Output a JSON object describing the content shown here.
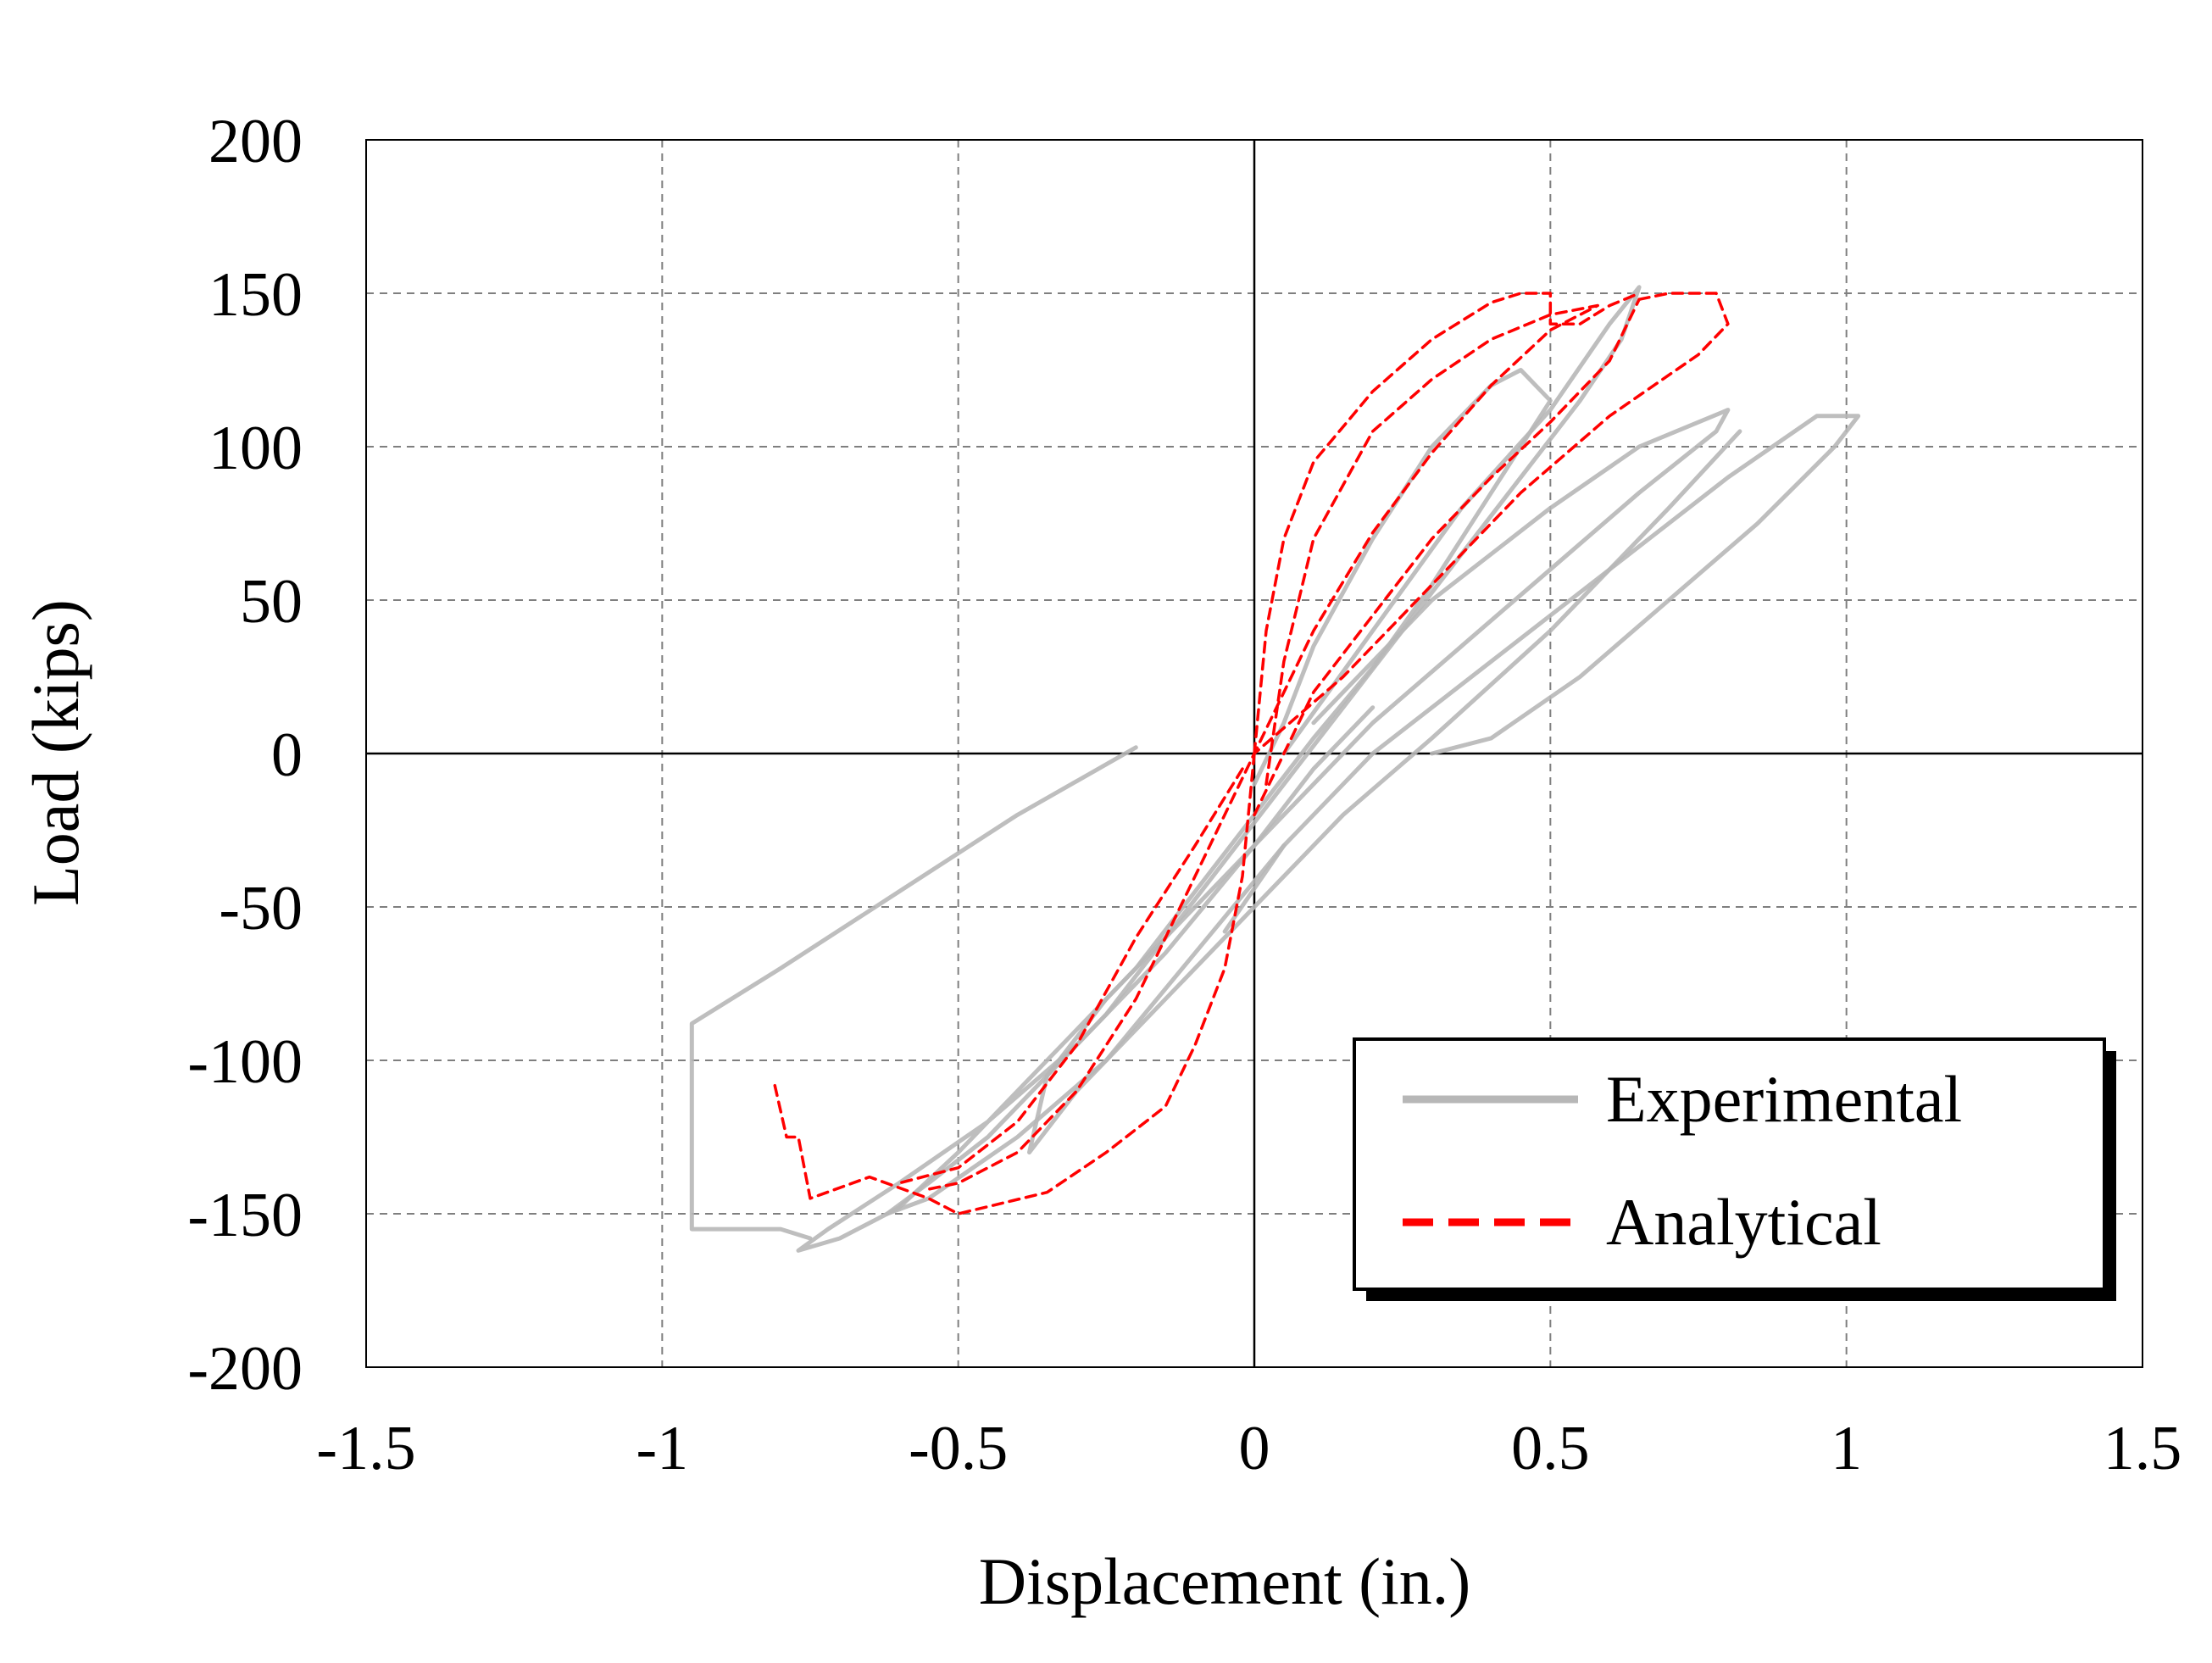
{
  "colors": {
    "experimental": "#b7b7b7",
    "analytical": "#ff0000",
    "grid": "#7f7f7f",
    "axis": "#000000"
  },
  "chart_data": {
    "type": "line",
    "title": "",
    "xlabel": "Displacement (in.)",
    "ylabel": "Load (kips)",
    "xlim": [
      -1.5,
      1.5
    ],
    "ylim": [
      -200,
      200
    ],
    "xticks": [
      -1.5,
      -1,
      -0.5,
      0,
      0.5,
      1,
      1.5
    ],
    "xtick_labels": [
      "-1.5",
      "-1",
      "-0.5",
      "0",
      "0.5",
      "1",
      "1.5"
    ],
    "yticks": [
      200,
      150,
      100,
      50,
      0,
      -50,
      -100,
      -150,
      -200
    ],
    "ytick_labels": [
      "200",
      "150",
      "100",
      "50",
      "0",
      "-50",
      "-100",
      "-150",
      "-200"
    ],
    "grid": true,
    "legend": {
      "position": "bottom-right",
      "entries": [
        "Experimental",
        "Analytical"
      ]
    },
    "series": [
      {
        "name": "Experimental",
        "style": "solid",
        "color": "#b7b7b7",
        "segments": [
          [
            [
              0,
              -10
            ],
            [
              0.05,
              10
            ],
            [
              0.1,
              35
            ],
            [
              0.2,
              70
            ],
            [
              0.3,
              100
            ],
            [
              0.4,
              120
            ],
            [
              0.45,
              125
            ],
            [
              0.5,
              115
            ],
            [
              0.4,
              85
            ],
            [
              0.3,
              55
            ],
            [
              0.2,
              28
            ],
            [
              0.1,
              5
            ],
            [
              0,
              -20
            ],
            [
              -0.1,
              -45
            ],
            [
              -0.2,
              -70
            ],
            [
              -0.3,
              -90
            ],
            [
              -0.4,
              -110
            ],
            [
              -0.5,
              -130
            ],
            [
              -0.6,
              -148
            ],
            [
              -0.7,
              -158
            ],
            [
              -0.77,
              -162
            ],
            [
              -0.72,
              -155
            ],
            [
              -0.6,
              -140
            ],
            [
              -0.45,
              -120
            ],
            [
              -0.3,
              -95
            ],
            [
              -0.15,
              -65
            ],
            [
              0,
              -30
            ],
            [
              0.1,
              -5
            ],
            [
              0.2,
              15
            ]
          ],
          [
            [
              0.05,
              0
            ],
            [
              0.2,
              40
            ],
            [
              0.35,
              80
            ],
            [
              0.5,
              112
            ],
            [
              0.6,
              140
            ],
            [
              0.65,
              152
            ],
            [
              0.62,
              135
            ],
            [
              0.55,
              115
            ],
            [
              0.45,
              90
            ],
            [
              0.35,
              65
            ],
            [
              0.25,
              40
            ],
            [
              0.15,
              15
            ],
            [
              0.05,
              -10
            ],
            [
              -0.05,
              -35
            ],
            [
              -0.15,
              -60
            ],
            [
              -0.25,
              -85
            ],
            [
              -0.35,
              -105
            ],
            [
              -0.45,
              -125
            ],
            [
              -0.55,
              -140
            ],
            [
              -0.62,
              -150
            ],
            [
              -0.55,
              -145
            ],
            [
              -0.4,
              -125
            ],
            [
              -0.25,
              -100
            ],
            [
              -0.1,
              -65
            ],
            [
              0.05,
              -30
            ]
          ],
          [
            [
              0.1,
              10
            ],
            [
              0.3,
              50
            ],
            [
              0.5,
              80
            ],
            [
              0.65,
              100
            ],
            [
              0.8,
              112
            ],
            [
              0.78,
              105
            ],
            [
              0.65,
              85
            ],
            [
              0.5,
              60
            ],
            [
              0.35,
              35
            ],
            [
              0.2,
              10
            ],
            [
              0.05,
              -20
            ],
            [
              -0.1,
              -50
            ],
            [
              -0.25,
              -80
            ],
            [
              -0.35,
              -105
            ],
            [
              -0.38,
              -130
            ],
            [
              -0.3,
              -110
            ],
            [
              -0.2,
              -90
            ],
            [
              -0.1,
              -70
            ],
            [
              0,
              -50
            ],
            [
              0.15,
              -20
            ],
            [
              0.3,
              5
            ],
            [
              0.5,
              40
            ],
            [
              0.7,
              80
            ],
            [
              0.82,
              105
            ]
          ],
          [
            [
              -0.05,
              -58
            ],
            [
              0.05,
              -30
            ],
            [
              0.2,
              0
            ],
            [
              0.4,
              30
            ],
            [
              0.6,
              60
            ],
            [
              0.8,
              90
            ],
            [
              0.95,
              110
            ],
            [
              1.02,
              110
            ],
            [
              0.98,
              100
            ],
            [
              0.85,
              75
            ],
            [
              0.7,
              50
            ],
            [
              0.55,
              25
            ],
            [
              0.4,
              5
            ],
            [
              0.3,
              0
            ]
          ],
          [
            [
              -0.2,
              2
            ],
            [
              -0.4,
              -20
            ],
            [
              -0.6,
              -45
            ],
            [
              -0.8,
              -70
            ],
            [
              -0.95,
              -88
            ],
            [
              -0.95,
              -155
            ],
            [
              -0.8,
              -155
            ],
            [
              -0.75,
              -158
            ]
          ]
        ]
      },
      {
        "name": "Analytical",
        "style": "dashed",
        "color": "#ff0000",
        "segments": [
          [
            [
              0,
              0
            ],
            [
              0.02,
              40
            ],
            [
              0.05,
              70
            ],
            [
              0.1,
              95
            ],
            [
              0.2,
              118
            ],
            [
              0.3,
              135
            ],
            [
              0.4,
              147
            ],
            [
              0.45,
              150
            ],
            [
              0.5,
              150
            ],
            [
              0.5,
              140
            ],
            [
              0.55,
              140
            ],
            [
              0.6,
              146
            ],
            [
              0.65,
              150
            ]
          ],
          [
            [
              0,
              0
            ],
            [
              -0.02,
              -40
            ],
            [
              -0.05,
              -70
            ],
            [
              -0.1,
              -95
            ],
            [
              -0.15,
              -115
            ],
            [
              -0.25,
              -130
            ],
            [
              -0.35,
              -143
            ],
            [
              -0.5,
              -150
            ],
            [
              -0.55,
              -145
            ],
            [
              -0.65,
              -138
            ],
            [
              -0.75,
              -145
            ],
            [
              -0.77,
              -125
            ],
            [
              -0.79,
              -125
            ],
            [
              -0.81,
              -108
            ]
          ],
          [
            [
              0.02,
              -10
            ],
            [
              0.05,
              30
            ],
            [
              0.1,
              70
            ],
            [
              0.2,
              105
            ],
            [
              0.3,
              122
            ],
            [
              0.4,
              135
            ],
            [
              0.5,
              143
            ],
            [
              0.58,
              146
            ],
            [
              0.5,
              138
            ],
            [
              0.4,
              120
            ],
            [
              0.3,
              98
            ],
            [
              0.2,
              72
            ],
            [
              0.1,
              40
            ],
            [
              0,
              0
            ],
            [
              -0.1,
              -40
            ],
            [
              -0.2,
              -80
            ],
            [
              -0.3,
              -110
            ],
            [
              -0.4,
              -130
            ],
            [
              -0.5,
              -140
            ],
            [
              -0.55,
              -142
            ]
          ],
          [
            [
              0.65,
              148
            ],
            [
              0.7,
              150
            ],
            [
              0.78,
              150
            ],
            [
              0.8,
              140
            ],
            [
              0.75,
              130
            ],
            [
              0.6,
              110
            ],
            [
              0.45,
              85
            ],
            [
              0.3,
              55
            ],
            [
              0.15,
              25
            ],
            [
              0,
              0
            ]
          ],
          [
            [
              0,
              -20
            ],
            [
              0.1,
              20
            ],
            [
              0.2,
              45
            ],
            [
              0.3,
              70
            ],
            [
              0.4,
              90
            ],
            [
              0.5,
              108
            ],
            [
              0.6,
              128
            ],
            [
              0.65,
              148
            ]
          ],
          [
            [
              -0.02,
              -5
            ],
            [
              -0.1,
              -30
            ],
            [
              -0.2,
              -60
            ],
            [
              -0.3,
              -95
            ],
            [
              -0.4,
              -120
            ],
            [
              -0.5,
              -135
            ],
            [
              -0.6,
              -140
            ]
          ]
        ]
      }
    ]
  }
}
